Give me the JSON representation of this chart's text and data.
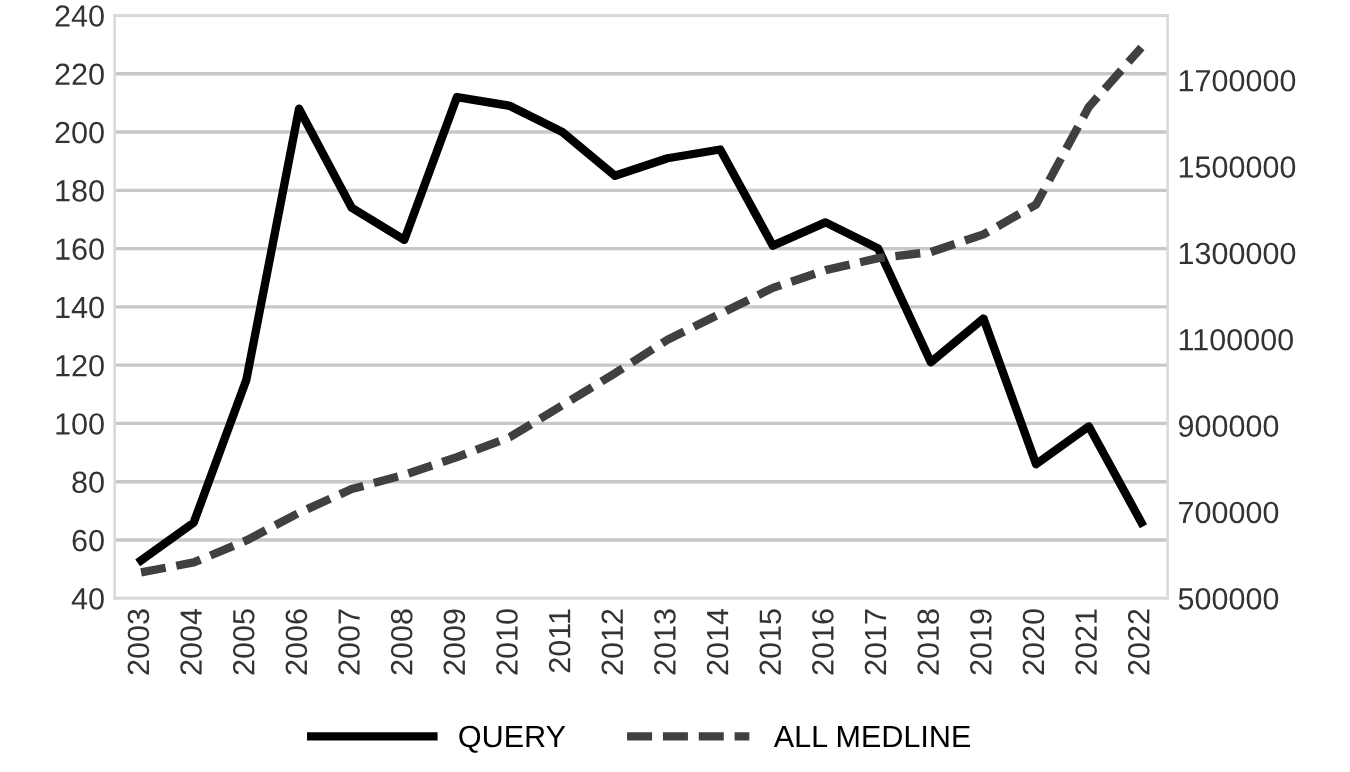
{
  "chart_data": {
    "type": "line",
    "categories": [
      "2003",
      "2004",
      "2005",
      "2006",
      "2007",
      "2008",
      "2009",
      "2010",
      "2011",
      "2012",
      "2013",
      "2014",
      "2015",
      "2016",
      "2017",
      "2018",
      "2019",
      "2020",
      "2021",
      "2022"
    ],
    "series": [
      {
        "name": "QUERY",
        "color": "#000000",
        "line_style": "solid",
        "values": [
          53,
          66,
          115,
          208,
          174,
          163,
          212,
          209,
          200,
          185,
          191,
          194,
          161,
          169,
          160,
          121,
          136,
          86,
          99,
          66
        ]
      },
      {
        "name": "ALL MEDLINE",
        "color": "#404040",
        "line_style": "dashed",
        "axis": "y2",
        "values": [
          560000,
          583000,
          634000,
          698000,
          753000,
          786000,
          827000,
          873000,
          947000,
          1021000,
          1099000,
          1159000,
          1219000,
          1260000,
          1288000,
          1302000,
          1343000,
          1412000,
          1638000,
          1776000
        ]
      }
    ],
    "ylim": [
      40,
      240
    ],
    "yticks": [
      40,
      60,
      80,
      100,
      120,
      140,
      160,
      180,
      200,
      220,
      240
    ],
    "y2lim": [
      500000,
      1850000
    ],
    "y2ticks": [
      500000,
      700000,
      900000,
      1100000,
      1300000,
      1500000,
      1700000
    ],
    "grid": "y",
    "legend": "bottom",
    "marker": "none"
  }
}
